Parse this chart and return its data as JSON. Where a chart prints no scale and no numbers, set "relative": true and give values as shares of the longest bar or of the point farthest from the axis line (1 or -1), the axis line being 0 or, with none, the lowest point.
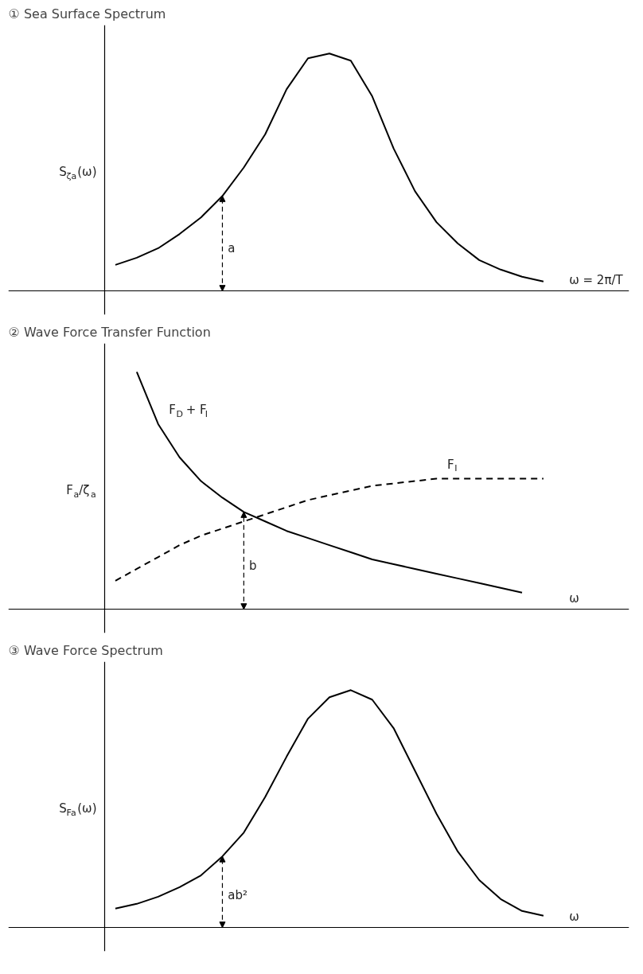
{
  "chart_data": [
    {
      "type": "line",
      "title": "① Sea Surface Spectrum",
      "xlabel": "ω = 2π/T",
      "ylabel": "S$_{ζa}$(ω)",
      "relative": true,
      "legend": false,
      "grid": false,
      "categories": [
        null,
        null,
        null,
        null,
        null,
        null,
        null,
        null,
        null,
        null,
        null,
        null,
        null,
        null,
        null,
        null,
        null,
        null,
        null,
        null,
        null
      ],
      "series": [
        {
          "color": "#000000",
          "line_style": "solid",
          "values": [
            0.11,
            0.14,
            0.18,
            0.24,
            0.31,
            0.4,
            0.52,
            0.66,
            0.85,
            0.98,
            1.0,
            0.97,
            0.82,
            0.6,
            0.42,
            0.29,
            0.2,
            0.13,
            0.09,
            0.06,
            0.04
          ]
        }
      ],
      "annotations": [
        "a"
      ]
    },
    {
      "type": "line",
      "title": "② Wave Force Transfer Function",
      "xlabel": "ω",
      "ylabel": "F$_{a}$/ζ$_{a}$",
      "relative": true,
      "legend": false,
      "grid": false,
      "categories": [
        null,
        null,
        null,
        null,
        null,
        null,
        null,
        null,
        null,
        null,
        null,
        null,
        null,
        null,
        null,
        null,
        null,
        null,
        null,
        null,
        null
      ],
      "series": [
        {
          "name": "F$_{D}$ + F$_{I}$",
          "color": "#000000",
          "line_style": "solid",
          "values": [
            null,
            1.0,
            0.78,
            0.64,
            0.54,
            0.47,
            0.41,
            0.37,
            0.33,
            0.3,
            0.27,
            0.24,
            0.21,
            0.19,
            0.17,
            0.15,
            0.13,
            0.11,
            0.09,
            0.07,
            null
          ]
        },
        {
          "name": "F$_{I}$",
          "color": "#000000",
          "line_style": "dashed",
          "values": [
            0.12,
            0.17,
            0.22,
            0.27,
            0.31,
            0.34,
            0.37,
            0.4,
            0.43,
            0.46,
            0.48,
            0.5,
            0.52,
            0.53,
            0.54,
            0.55,
            0.55,
            0.55,
            0.55,
            0.55,
            0.55
          ]
        }
      ],
      "annotations": [
        "b"
      ]
    },
    {
      "type": "line",
      "title": "③ Wave Force Spectrum",
      "xlabel": "ω",
      "ylabel": "S$_{Fa}$(ω)",
      "relative": true,
      "legend": false,
      "grid": false,
      "categories": [
        null,
        null,
        null,
        null,
        null,
        null,
        null,
        null,
        null,
        null,
        null,
        null,
        null,
        null,
        null,
        null,
        null,
        null,
        null,
        null,
        null
      ],
      "series": [
        {
          "color": "#000000",
          "line_style": "solid",
          "values": [
            0.08,
            0.1,
            0.13,
            0.17,
            0.22,
            0.3,
            0.4,
            0.55,
            0.72,
            0.88,
            0.97,
            1.0,
            0.96,
            0.84,
            0.66,
            0.48,
            0.32,
            0.2,
            0.12,
            0.07,
            0.05
          ]
        }
      ],
      "annotations": [
        "ab²"
      ]
    }
  ]
}
